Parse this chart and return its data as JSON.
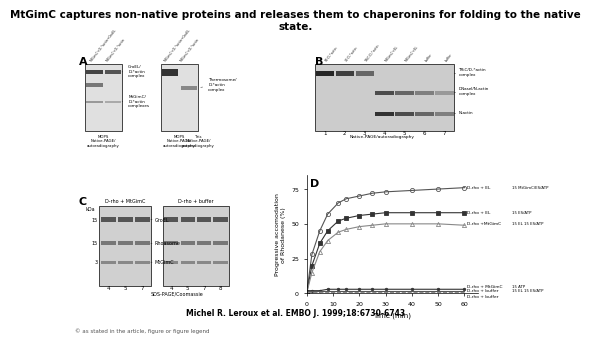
{
  "title": "MtGimC captures non-native proteins and releases them to chaperonins for folding to the native\nstate.",
  "title_fontsize": 7.5,
  "panel_labels": [
    "A",
    "B",
    "C",
    "D"
  ],
  "author_line": "Michel R. Leroux et al. EMBO J. 1999;18:6730-6743",
  "panel_D": {
    "xlabel": "Time (min)",
    "ylabel": "Progressive accomodation\nof Rhodanese (%)",
    "x_ticks": [
      0,
      10,
      20,
      30,
      40,
      50,
      60
    ],
    "y_ticks": [
      0,
      25,
      50,
      75
    ],
    "ylim": [
      0,
      85
    ],
    "xlim": [
      0,
      65
    ],
    "curves": [
      {
        "label": "D-rho + EL",
        "x": [
          0,
          2,
          5,
          8,
          12,
          15,
          20,
          25,
          30,
          40,
          50,
          60
        ],
        "y": [
          0,
          28,
          45,
          57,
          65,
          68,
          70,
          72,
          73,
          74,
          75,
          76
        ],
        "style": "circle_open",
        "color": "#555555"
      },
      {
        "label": "D-rho + EL",
        "x": [
          0,
          2,
          5,
          8,
          12,
          15,
          20,
          25,
          30,
          40,
          50,
          60
        ],
        "y": [
          0,
          20,
          36,
          45,
          52,
          54,
          56,
          57,
          58,
          58,
          58,
          58
        ],
        "style": "square_filled",
        "color": "#333333"
      },
      {
        "label": "D-rho +MtGimC",
        "x": [
          0,
          2,
          5,
          8,
          12,
          15,
          20,
          25,
          30,
          40,
          50,
          60
        ],
        "y": [
          0,
          15,
          30,
          38,
          44,
          46,
          48,
          49,
          50,
          50,
          50,
          49
        ],
        "style": "triangle_open",
        "color": "#888888"
      },
      {
        "label": "D-rho + MtGimC",
        "x": [
          0,
          2,
          5,
          8,
          12,
          15,
          20,
          25,
          30,
          40,
          50,
          60
        ],
        "y": [
          2,
          2,
          2,
          3,
          3,
          3,
          3,
          3,
          3,
          3,
          3,
          3
        ],
        "style": "circle_filled_small",
        "color": "#333333"
      },
      {
        "label": "D-rho + buffer",
        "x": [
          0,
          2,
          5,
          8,
          12,
          15,
          20,
          25,
          30,
          40,
          50,
          60
        ],
        "y": [
          2,
          2,
          2,
          2,
          2,
          2,
          2,
          2,
          2,
          2,
          2,
          2
        ],
        "style": "line_only",
        "color": "#555555"
      },
      {
        "label": "D-rho + buffer",
        "x": [
          0,
          2,
          5,
          8,
          12,
          15,
          20,
          25,
          30,
          40,
          50,
          60
        ],
        "y": [
          1,
          1,
          1,
          1,
          1,
          1,
          1,
          1,
          1,
          1,
          1,
          1
        ],
        "style": "line_only2",
        "color": "#888888"
      }
    ],
    "right_curve_labels": [
      {
        "text": "D-rho + EL",
        "y": 76
      },
      {
        "text": "D-rho + EL",
        "y": 58
      },
      {
        "text": "D-rho +MtGimC",
        "y": 50
      },
      {
        "text": "D-rho + MtGimC",
        "y": 5
      },
      {
        "text": "D-rho + buffer",
        "y": 2
      },
      {
        "text": "D-rho + buffer",
        "y": -2
      }
    ],
    "far_right_labels": [
      {
        "text": "15 MtGimC/ES/ATP",
        "y": 76
      },
      {
        "text": "15 ES/ATP",
        "y": 58
      },
      {
        "text": "15 EL 15 ES/ATP",
        "y": 50
      },
      {
        "text": "15 ATP",
        "y": 5
      },
      {
        "text": "15 EL 15 ES/ATP",
        "y": 2
      }
    ]
  },
  "footer_text": "© as stated in the article, figure or figure legend",
  "embo_green": "#4a7c2f",
  "bg_color": "#ffffff"
}
